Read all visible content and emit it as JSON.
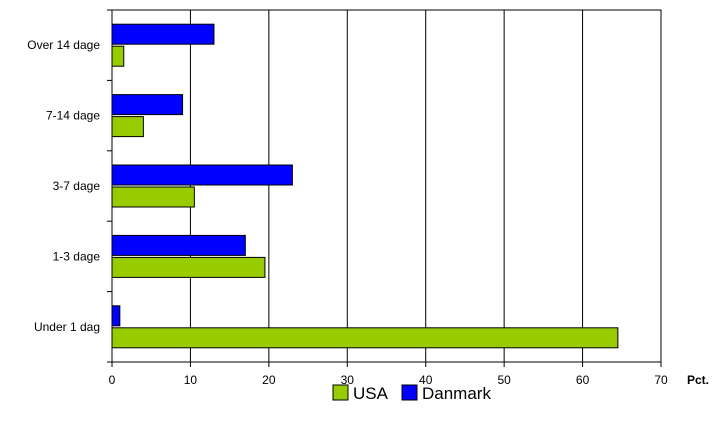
{
  "chart_data": {
    "type": "bar",
    "orientation": "horizontal",
    "categories": [
      "Over 14 dage",
      "7-14 dage",
      "3-7 dage",
      "1-3 dage",
      "Under 1 dag"
    ],
    "series": [
      {
        "name": "Danmark",
        "color": "#0000ff",
        "values": [
          13,
          9,
          23,
          17,
          1
        ]
      },
      {
        "name": "USA",
        "color": "#99cc00",
        "values": [
          1.5,
          4,
          10.5,
          19.5,
          64.5
        ]
      }
    ],
    "legend_order": [
      "USA",
      "Danmark"
    ],
    "xlim": [
      0,
      70
    ],
    "xticks": [
      0,
      10,
      20,
      30,
      40,
      50,
      60,
      70
    ],
    "xunit": "Pct.",
    "grid": "vertical",
    "legend": "bottom"
  }
}
